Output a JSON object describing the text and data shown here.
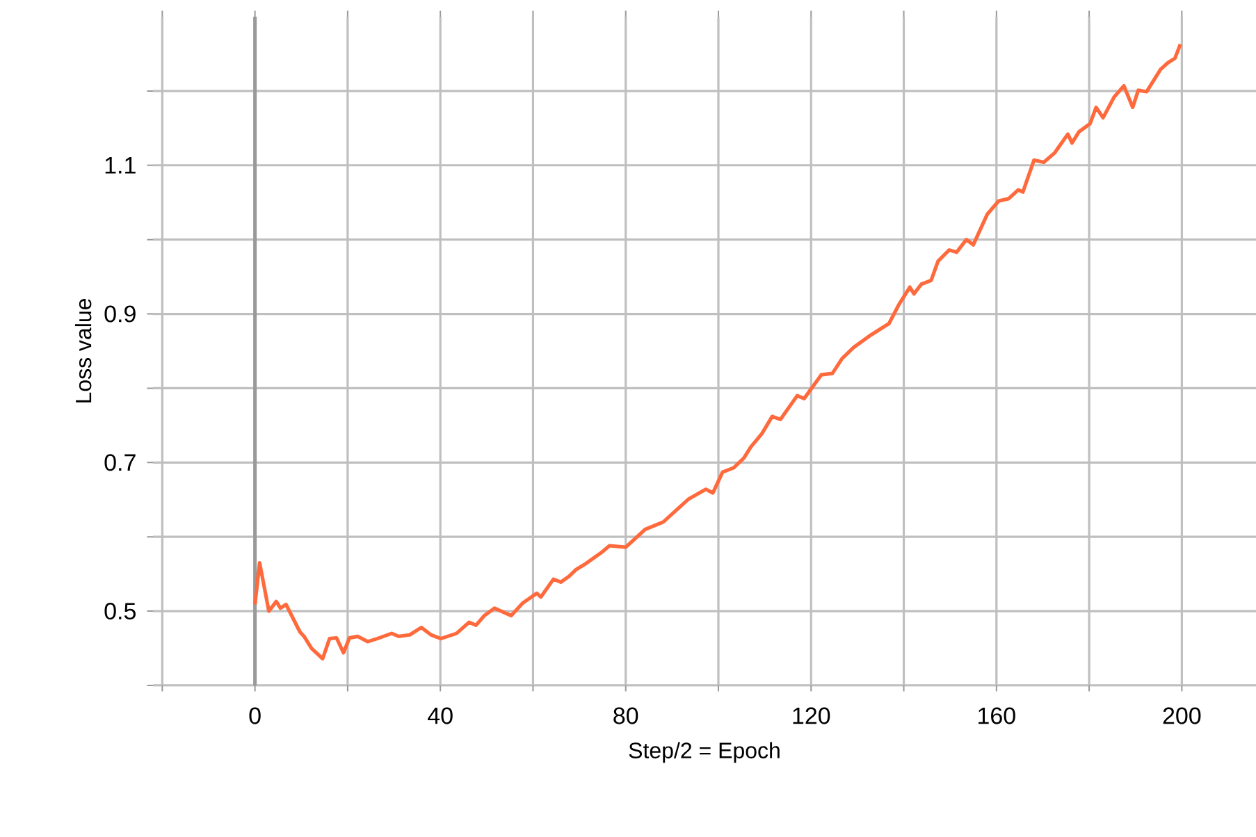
{
  "chart_data": {
    "type": "line",
    "xlabel": "Step/2 = Epoch",
    "ylabel": "Loss value",
    "xlim": [
      -22,
      216
    ],
    "ylim": [
      0.4,
      1.3
    ],
    "xticks": [
      {
        "value": -20,
        "label": null
      },
      0,
      {
        "value": 20,
        "label": null
      },
      40,
      {
        "value": 60,
        "label": null
      },
      80,
      {
        "value": 100,
        "label": null
      },
      120,
      {
        "value": 140,
        "label": null
      },
      160,
      {
        "value": 180,
        "label": null
      },
      200
    ],
    "yticks": [
      {
        "value": 0.4,
        "label": null
      },
      0.5,
      {
        "value": 0.6,
        "label": null
      },
      0.7,
      {
        "value": 0.8,
        "label": null
      },
      0.9,
      {
        "value": 1.0,
        "label": null
      },
      1.1,
      {
        "value": 1.2,
        "label": null
      }
    ],
    "grid": true,
    "marker": "none",
    "line_style": "solid",
    "ref_lines": [
      {
        "axis": "x",
        "value": 0,
        "color": "#999999"
      }
    ],
    "series": [
      {
        "color": "#ff6a3d",
        "x": [
          0,
          1,
          3,
          4.6,
          5.5,
          6.7,
          9.7,
          10.6,
          12.2,
          14.6,
          16.1,
          17.6,
          19.1,
          20.4,
          22.2,
          24.3,
          26.4,
          29.5,
          31,
          33.4,
          35.9,
          38,
          40.1,
          43.5,
          46.2,
          47.7,
          49.5,
          51.7,
          55.3,
          57.8,
          60.8,
          61.7,
          64.4,
          66,
          67.8,
          69.3,
          71.4,
          75,
          76.5,
          80,
          84.2,
          88.1,
          93.6,
          97.3,
          98.8,
          100.9,
          103.3,
          105.5,
          107,
          109.4,
          111.6,
          113.4,
          117,
          118.5,
          122.2,
          124.6,
          126.7,
          129.2,
          133,
          136.8,
          138.9,
          141.3,
          142.2,
          143.8,
          145.9,
          147.4,
          149.8,
          151.4,
          153.5,
          155,
          158,
          160.5,
          162.6,
          164.7,
          165.7,
          168.1,
          170.2,
          172.6,
          175.4,
          176.3,
          177.8,
          180.2,
          181.5,
          183,
          185.4,
          187.5,
          189.4,
          190.6,
          192.4,
          195.4,
          197,
          198.5,
          199.7
        ],
        "values": [
          0.509,
          0.565,
          0.5,
          0.513,
          0.504,
          0.509,
          0.472,
          0.466,
          0.45,
          0.436,
          0.463,
          0.464,
          0.444,
          0.464,
          0.466,
          0.459,
          0.463,
          0.47,
          0.466,
          0.468,
          0.478,
          0.468,
          0.463,
          0.47,
          0.485,
          0.481,
          0.494,
          0.504,
          0.494,
          0.511,
          0.524,
          0.519,
          0.543,
          0.539,
          0.547,
          0.556,
          0.564,
          0.58,
          0.588,
          0.586,
          0.61,
          0.62,
          0.651,
          0.664,
          0.659,
          0.687,
          0.693,
          0.706,
          0.721,
          0.739,
          0.762,
          0.758,
          0.79,
          0.786,
          0.818,
          0.82,
          0.84,
          0.855,
          0.872,
          0.887,
          0.912,
          0.936,
          0.927,
          0.94,
          0.945,
          0.971,
          0.986,
          0.983,
          1.0,
          0.993,
          1.034,
          1.052,
          1.055,
          1.067,
          1.064,
          1.107,
          1.104,
          1.117,
          1.142,
          1.13,
          1.145,
          1.156,
          1.178,
          1.164,
          1.192,
          1.207,
          1.178,
          1.201,
          1.199,
          1.229,
          1.238,
          1.244,
          1.263
        ]
      }
    ]
  }
}
